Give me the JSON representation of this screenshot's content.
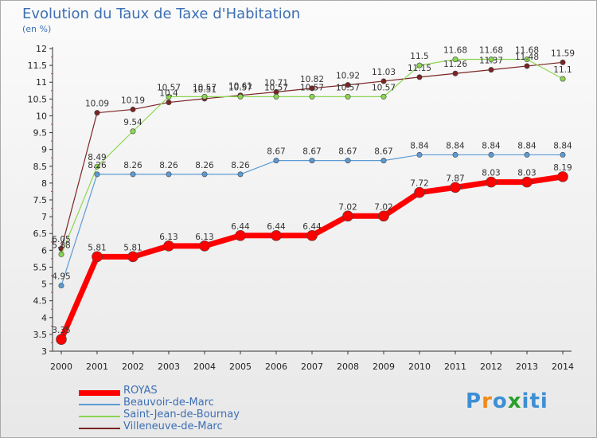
{
  "title": "Evolution du Taux de Taxe d'Habitation",
  "subtitle": "(en %)",
  "logo": {
    "letters": [
      "P",
      "r",
      "o",
      "x",
      "i",
      "t",
      "i"
    ],
    "colors": [
      "#3d8fd4",
      "#f08a1c",
      "#3d8fd4",
      "#2aa02a",
      "#3d8fd4",
      "#3d8fd4",
      "#3d8fd4"
    ]
  },
  "chart_data": {
    "type": "line",
    "x": [
      "2000",
      "2001",
      "2002",
      "2003",
      "2004",
      "2005",
      "2006",
      "2007",
      "2008",
      "2009",
      "2010",
      "2011",
      "2012",
      "2013",
      "2014"
    ],
    "ylim": [
      3,
      12
    ],
    "yticks": [
      "3",
      "3.5",
      "4",
      "4.5",
      "5",
      "5.5",
      "6",
      "6.5",
      "7",
      "7.5",
      "8",
      "8.5",
      "9",
      "9.5",
      "10",
      "10.5",
      "11",
      "11.5",
      "12"
    ],
    "grid": false,
    "legend_position": "bottom-left",
    "series": [
      {
        "name": "ROYAS",
        "color": "#ff0000",
        "width": 7,
        "dot": 6.5,
        "values": [
          3.35,
          5.81,
          5.81,
          6.13,
          6.13,
          6.44,
          6.44,
          6.44,
          7.02,
          7.02,
          7.72,
          7.87,
          8.03,
          8.03,
          8.19
        ],
        "labels": [
          "3.35",
          "5.81",
          "5.81",
          "6.13",
          "6.13",
          "6.44",
          "6.44",
          "6.44",
          "7.02",
          "7.02",
          "7.72",
          "7.87",
          "8.03",
          "8.03",
          "8.19"
        ]
      },
      {
        "name": "Beauvoir-de-Marc",
        "color": "#5b9bd5",
        "width": 1.2,
        "dot": 3.2,
        "values": [
          4.95,
          8.26,
          8.26,
          8.26,
          8.26,
          8.26,
          8.67,
          8.67,
          8.67,
          8.67,
          8.84,
          8.84,
          8.84,
          8.84,
          8.84
        ],
        "labels": [
          "4.95",
          "8.26",
          "8.26",
          "8.26",
          "8.26",
          "8.26",
          "8.67",
          "8.67",
          "8.67",
          "8.67",
          "8.84",
          "8.84",
          "8.84",
          "8.84",
          "8.84"
        ]
      },
      {
        "name": "Saint-Jean-de-Bournay",
        "color": "#8bd650",
        "width": 1.2,
        "dot": 3.2,
        "values": [
          5.88,
          8.49,
          9.54,
          10.57,
          10.57,
          10.57,
          10.57,
          10.57,
          10.57,
          10.57,
          11.5,
          11.68,
          11.68,
          11.68,
          11.1
        ],
        "labels": [
          "5.88",
          "8.49",
          "9.54",
          "10.57",
          "10.57",
          "10.57",
          "10.57",
          "10.57",
          "10.57",
          "10.57",
          "11.5",
          "11.68",
          "11.68",
          "11.68",
          "11.1"
        ]
      },
      {
        "name": "Villeneuve-de-Marc",
        "color": "#7b2424",
        "width": 1.2,
        "dot": 3.2,
        "values": [
          6.05,
          10.09,
          10.19,
          10.4,
          10.51,
          10.61,
          10.71,
          10.82,
          10.92,
          11.03,
          11.15,
          11.26,
          11.37,
          11.48,
          11.59
        ],
        "labels": [
          "6.05",
          "10.09",
          "10.19",
          "10.4",
          "10.51",
          "10.61",
          "10.71",
          "10.82",
          "10.92",
          "11.03",
          "11.15",
          "11.26",
          "11.37",
          "11.48",
          "11.59"
        ]
      }
    ]
  }
}
